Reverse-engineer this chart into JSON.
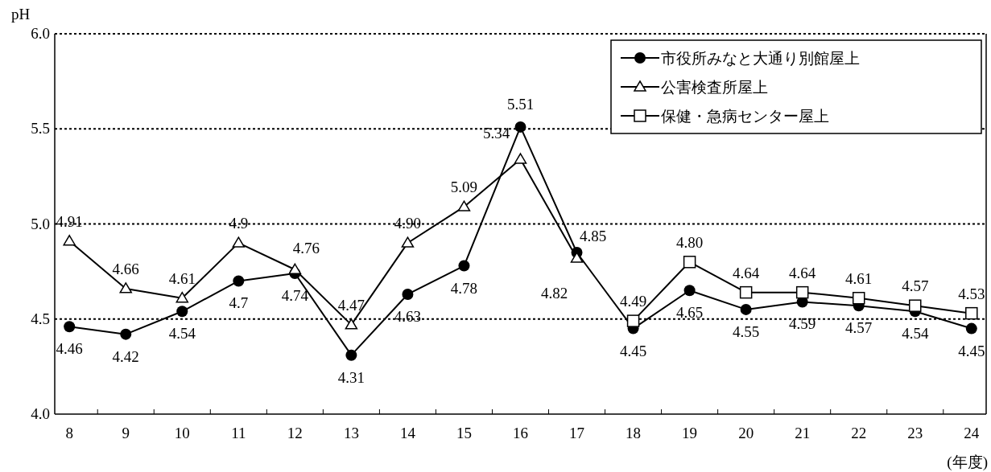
{
  "chart_data": {
    "type": "line",
    "ylabel": "pH",
    "xlabel": "(年度)",
    "categories": [
      "8",
      "9",
      "10",
      "11",
      "12",
      "13",
      "14",
      "15",
      "16",
      "17",
      "18",
      "19",
      "20",
      "21",
      "22",
      "23",
      "24"
    ],
    "ylim": [
      4,
      6
    ],
    "yticks": [
      {
        "value": 4,
        "label": "4.0"
      },
      {
        "value": 4.5,
        "label": "4.5"
      },
      {
        "value": 5,
        "label": "5.0"
      },
      {
        "value": 5.5,
        "label": "5.5"
      },
      {
        "value": 6,
        "label": "6.0"
      }
    ],
    "grid": "y",
    "legend": "top right",
    "line_style": "solid",
    "series": [
      {
        "name": "市役所みなと大通り別館屋上",
        "color": "#000000",
        "marker": "circle",
        "values": [
          4.46,
          4.42,
          4.54,
          4.7,
          4.74,
          4.31,
          4.63,
          4.78,
          5.51,
          4.85,
          4.45,
          4.65,
          4.55,
          4.59,
          4.57,
          4.54,
          4.45
        ],
        "value_labels": [
          "4.46",
          "4.42",
          "4.54",
          "4.7",
          "4.74",
          "4.31",
          "4.63",
          "4.78",
          "5.51",
          "4.85",
          "4.45",
          "4.65",
          "4.55",
          "4.59",
          "4.57",
          "4.54",
          "4.45"
        ]
      },
      {
        "name": "公害検査所屋上",
        "color": "#000000",
        "marker": "triangle",
        "values": [
          4.91,
          4.66,
          4.61,
          4.9,
          4.76,
          4.47,
          4.9,
          5.09,
          5.34,
          4.82,
          null,
          null,
          null,
          null,
          null,
          null,
          null
        ],
        "value_labels": [
          "4.91",
          "4.66",
          "4.61",
          "4.9",
          "4.76",
          "4.47",
          "4.90",
          "5.09",
          "5.34",
          "4.82",
          null,
          null,
          null,
          null,
          null,
          null,
          null
        ]
      },
      {
        "name": "保健・急病センター屋上",
        "color": "#000000",
        "marker": "square",
        "values": [
          null,
          null,
          null,
          null,
          null,
          null,
          null,
          null,
          null,
          null,
          4.49,
          4.8,
          4.64,
          4.64,
          4.61,
          4.57,
          4.53
        ],
        "value_labels": [
          null,
          null,
          null,
          null,
          null,
          null,
          null,
          null,
          null,
          null,
          "4.49",
          "4.80",
          "4.64",
          "4.64",
          "4.61",
          "4.57",
          "4.53"
        ]
      }
    ]
  }
}
